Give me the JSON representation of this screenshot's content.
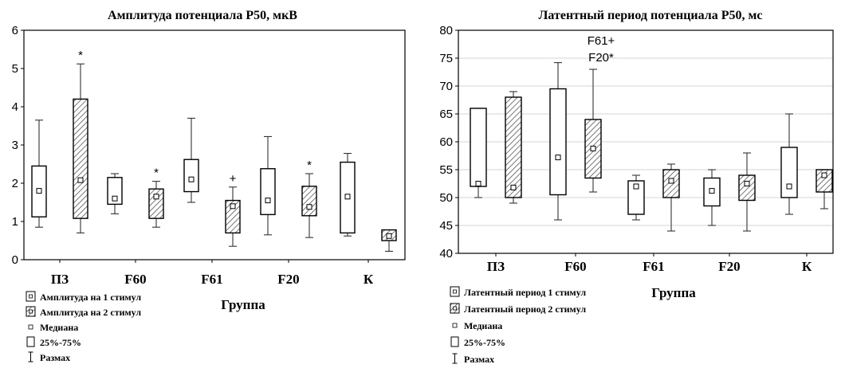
{
  "chart_data": [
    {
      "type": "boxplot",
      "title": "Амплитуда потенциала P50, мкВ",
      "xlabel": "Группа",
      "ylabel": "",
      "ylim": [
        0,
        6
      ],
      "yticks": [
        "0",
        "1",
        "2",
        "3",
        "4",
        "5",
        "6"
      ],
      "categories": [
        "ПЗ",
        "F60",
        "F61",
        "F20",
        "К"
      ],
      "series": [
        {
          "name": "Амплитуда на 1 стимул",
          "pattern": "plain",
          "values": [
            {
              "min": 0.85,
              "q1": 1.12,
              "median": 1.8,
              "q3": 2.45,
              "max": 3.65
            },
            {
              "min": 1.2,
              "q1": 1.45,
              "median": 1.6,
              "q3": 2.15,
              "max": 2.25
            },
            {
              "min": 1.5,
              "q1": 1.78,
              "median": 2.1,
              "q3": 2.62,
              "max": 3.7
            },
            {
              "min": 0.65,
              "q1": 1.18,
              "median": 1.55,
              "q3": 2.38,
              "max": 3.22
            },
            {
              "min": 0.62,
              "q1": 0.7,
              "median": 1.65,
              "q3": 2.55,
              "max": 2.78
            }
          ]
        },
        {
          "name": "Амплитуда на 2 стимул",
          "pattern": "hatched",
          "values": [
            {
              "min": 0.7,
              "q1": 1.08,
              "median": 2.08,
              "q3": 4.2,
              "max": 5.12
            },
            {
              "min": 0.85,
              "q1": 1.08,
              "median": 1.65,
              "q3": 1.85,
              "max": 2.05
            },
            {
              "min": 0.35,
              "q1": 0.7,
              "median": 1.4,
              "q3": 1.55,
              "max": 1.9
            },
            {
              "min": 0.58,
              "q1": 1.15,
              "median": 1.38,
              "q3": 1.92,
              "max": 2.25
            },
            {
              "min": 0.22,
              "q1": 0.5,
              "median": 0.62,
              "q3": 0.78,
              "max": 0.78
            }
          ]
        }
      ],
      "annotations": [
        {
          "category": "ПЗ",
          "series": 1,
          "text": "*"
        },
        {
          "category": "F60",
          "series": 1,
          "text": "*"
        },
        {
          "category": "F61",
          "series": 1,
          "text": "+"
        },
        {
          "category": "F20",
          "series": 1,
          "text": "*"
        }
      ],
      "legend": {
        "position": "bottom-left",
        "items": [
          "Амплитуда на 1 стимул",
          "Амплитуда на 2 стимул",
          "Медиана",
          "25%-75%",
          "Размах"
        ]
      },
      "grid": false
    },
    {
      "type": "boxplot",
      "title": "Латентный период потенциала P50, мс",
      "xlabel": "Группа",
      "ylabel": "",
      "ylim": [
        40,
        80
      ],
      "yticks": [
        "40",
        "45",
        "50",
        "55",
        "60",
        "65",
        "70",
        "75",
        "80"
      ],
      "categories": [
        "ПЗ",
        "F60",
        "F61",
        "F20",
        "К"
      ],
      "series": [
        {
          "name": "Латентный период 1 стимул",
          "pattern": "plain",
          "values": [
            {
              "min": 50,
              "q1": 52,
              "median": 52.5,
              "q3": 66,
              "max": 66
            },
            {
              "min": 46,
              "q1": 50.5,
              "median": 57.2,
              "q3": 69.5,
              "max": 74.2
            },
            {
              "min": 46,
              "q1": 47,
              "median": 52,
              "q3": 53,
              "max": 54
            },
            {
              "min": 45,
              "q1": 48.5,
              "median": 51.2,
              "q3": 53.5,
              "max": 55
            },
            {
              "min": 47,
              "q1": 50,
              "median": 52,
              "q3": 59,
              "max": 65
            }
          ]
        },
        {
          "name": "Латентный период 2 стимул",
          "pattern": "hatched",
          "values": [
            {
              "min": 49,
              "q1": 50,
              "median": 51.8,
              "q3": 68,
              "max": 69
            },
            {
              "min": 51,
              "q1": 53.5,
              "median": 58.8,
              "q3": 64,
              "max": 73
            },
            {
              "min": 44,
              "q1": 50,
              "median": 53,
              "q3": 55,
              "max": 56
            },
            {
              "min": 44,
              "q1": 49.5,
              "median": 52.5,
              "q3": 54,
              "max": 58
            },
            {
              "min": 48,
              "q1": 51,
              "median": 54,
              "q3": 55,
              "max": 55
            }
          ]
        }
      ],
      "annotations": [
        {
          "category": "F60",
          "series": 1,
          "text": "F61+"
        },
        {
          "category": "F60",
          "series": 1,
          "text": "F20*"
        }
      ],
      "legend": {
        "position": "bottom-left",
        "items": [
          "Латентный период 1 стимул",
          "Латентный период 2 стимул",
          "Медиана",
          "25%-75%",
          "Размах"
        ]
      },
      "grid": true
    }
  ]
}
